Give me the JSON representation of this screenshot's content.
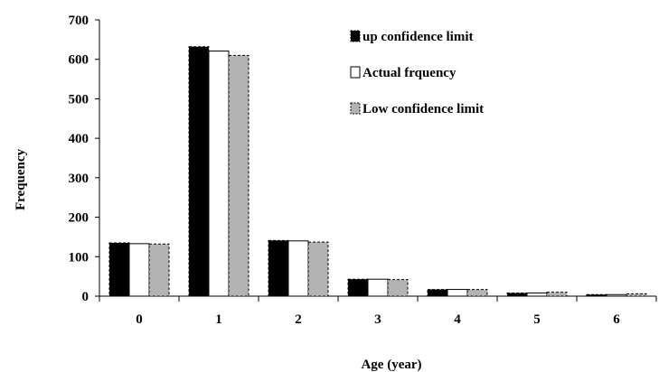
{
  "chart_data": {
    "type": "bar",
    "title": "",
    "xlabel": "Age (year)",
    "ylabel": "Frequency",
    "categories": [
      "0",
      "1",
      "2",
      "3",
      "4",
      "5",
      "6"
    ],
    "ylim": [
      0,
      700
    ],
    "yticks": [
      0,
      100,
      200,
      300,
      400,
      500,
      600,
      700
    ],
    "grid": false,
    "legend_position": "top-right",
    "series": [
      {
        "name": "up confidence limit",
        "values": [
          135,
          632,
          141,
          43,
          17,
          8,
          4
        ],
        "fill": "#000000",
        "stroke": "#000000",
        "dashed": true
      },
      {
        "name": "Actual frquency",
        "values": [
          133,
          621,
          140,
          43,
          17,
          8,
          4
        ],
        "fill": "#ffffff",
        "stroke": "#000000",
        "dashed": false
      },
      {
        "name": "Low confidence limit",
        "values": [
          132,
          610,
          137,
          42,
          17,
          10,
          6
        ],
        "fill": "#b3b3b3",
        "stroke": "#000000",
        "dashed": true
      }
    ]
  }
}
